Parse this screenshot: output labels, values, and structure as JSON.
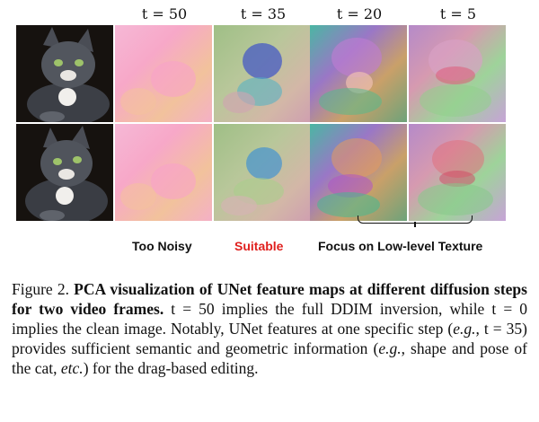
{
  "column_headers": [
    "t = 50",
    "t = 35",
    "t = 20",
    "t = 5"
  ],
  "labels": {
    "too_noisy": "Too Noisy",
    "suitable": "Suitable",
    "focus": "Focus on Low-level Texture"
  },
  "colors": {
    "suitable": "#e0201e"
  },
  "caption": {
    "prefix": "Figure 2. ",
    "bold": "PCA visualization of UNet feature maps at different diffusion steps for two video frames.",
    "part1": " t = 50 implies the full DDIM inversion, while t = 0 implies the clean image. Notably, UNet features at one specific step (",
    "eg1": "e.g.",
    "part2": ", t = 35) provides sufficient semantic and geometric information (",
    "eg2": "e.g.",
    "part3": ", shape and pose of the cat, ",
    "etc": "etc.",
    "part4": ") for the drag-based editing."
  }
}
